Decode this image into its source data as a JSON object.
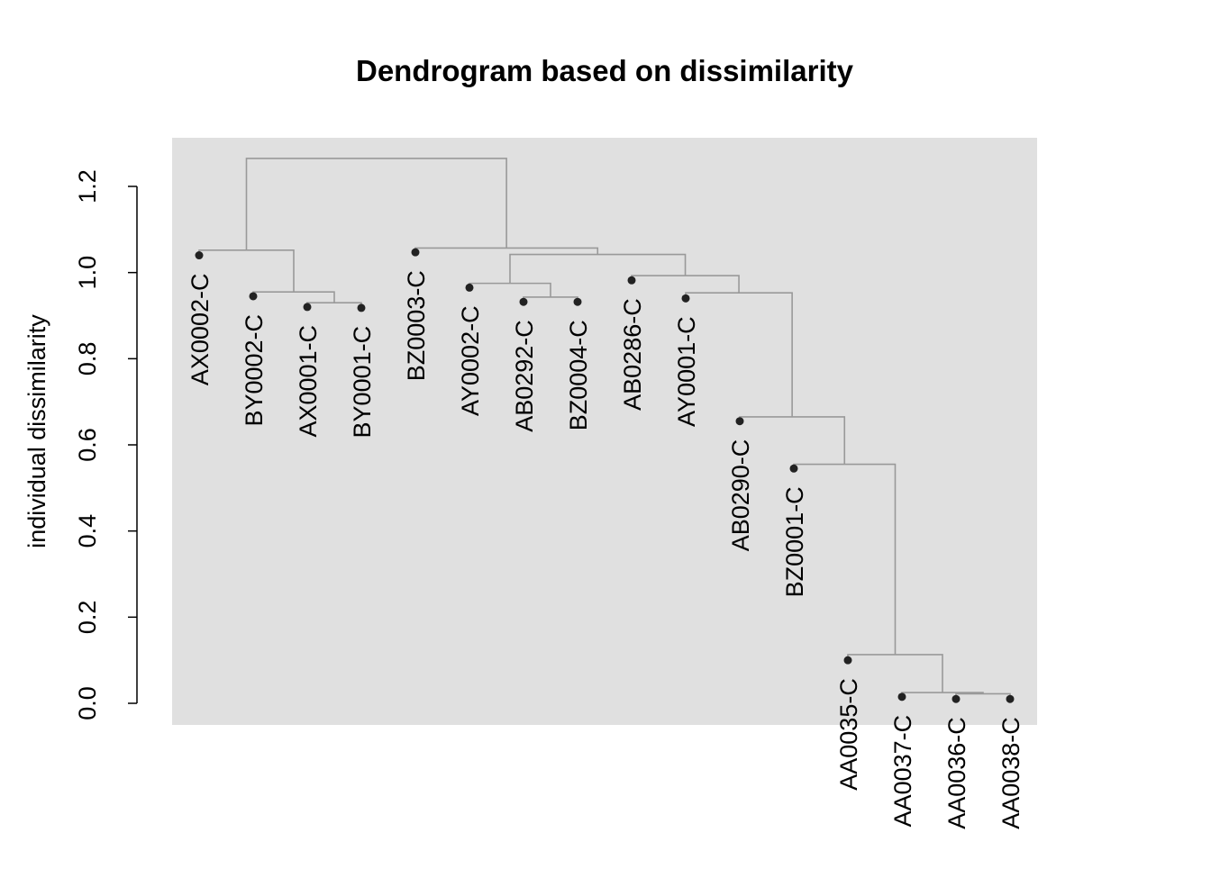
{
  "chart_data": {
    "type": "dendrogram",
    "title": "Dendrogram based on dissimilarity",
    "xlabel": "",
    "ylabel": "individual dissimilarity",
    "ylim": [
      0,
      1.2
    ],
    "yticks": [
      "0.0",
      "0.2",
      "0.4",
      "0.6",
      "0.8",
      "1.0",
      "1.2"
    ],
    "grid": false,
    "background": "#e0e0e0",
    "line_color": "#999999",
    "point_color": "#222222",
    "leaves": [
      {
        "label": "AX0002-C",
        "height": 1.04
      },
      {
        "label": "BY0002-C",
        "height": 0.945
      },
      {
        "label": "AX0001-C",
        "height": 0.92
      },
      {
        "label": "BY0001-C",
        "height": 0.918
      },
      {
        "label": "BZ0003-C",
        "height": 1.047
      },
      {
        "label": "AY0002-C",
        "height": 0.965
      },
      {
        "label": "AB0292-C",
        "height": 0.932
      },
      {
        "label": "BZ0004-C",
        "height": 0.932
      },
      {
        "label": "AB0286-C",
        "height": 0.982
      },
      {
        "label": "AY0001-C",
        "height": 0.94
      },
      {
        "label": "AB0290-C",
        "height": 0.655
      },
      {
        "label": "BZ0001-C",
        "height": 0.545
      },
      {
        "label": "AA0035-C",
        "height": 0.1
      },
      {
        "label": "AA0037-C",
        "height": 0.015
      },
      {
        "label": "AA0036-C",
        "height": 0.01
      },
      {
        "label": "AA0038-C",
        "height": 0.01
      }
    ],
    "merges": [
      {
        "a": "L2",
        "b": "L3",
        "height": 0.93
      },
      {
        "a": "L1",
        "b": "M0",
        "height": 0.955
      },
      {
        "a": "L0",
        "b": "M1",
        "height": 1.052
      },
      {
        "a": "L6",
        "b": "L7",
        "height": 0.943
      },
      {
        "a": "L5",
        "b": "M3",
        "height": 0.975
      },
      {
        "a": "L14",
        "b": "L15",
        "height": 0.022
      },
      {
        "a": "L13",
        "b": "M5",
        "height": 0.025
      },
      {
        "a": "L12",
        "b": "M6",
        "height": 0.113
      },
      {
        "a": "L11",
        "b": "M7",
        "height": 0.555
      },
      {
        "a": "L10",
        "b": "M8",
        "height": 0.665
      },
      {
        "a": "L9",
        "b": "M9",
        "height": 0.953
      },
      {
        "a": "L8",
        "b": "M10",
        "height": 0.993
      },
      {
        "a": "M4",
        "b": "M11",
        "height": 1.042
      },
      {
        "a": "L4",
        "b": "M12",
        "height": 1.057
      },
      {
        "a": "M2",
        "b": "M13",
        "height": 1.265
      }
    ]
  }
}
